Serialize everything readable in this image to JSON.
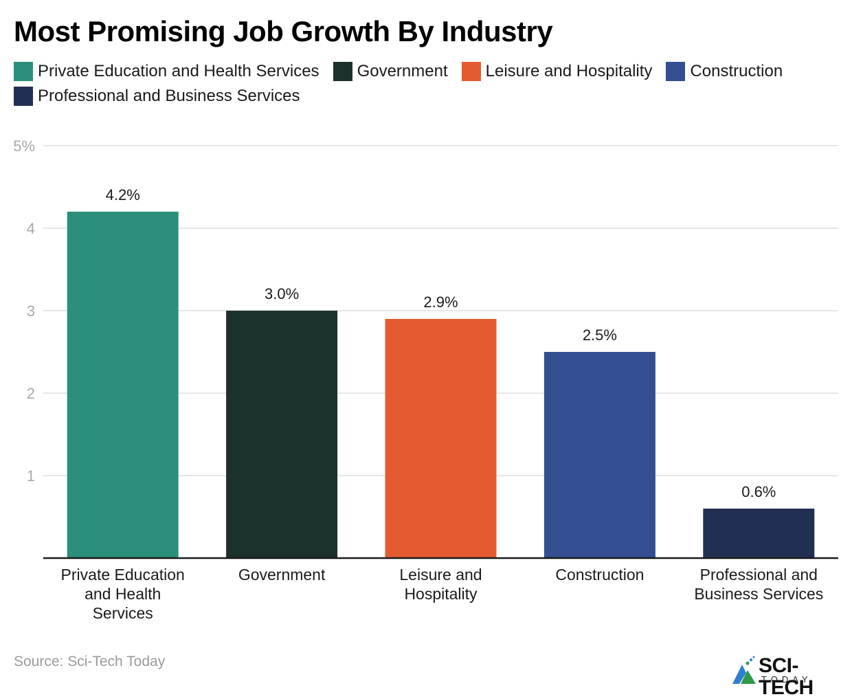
{
  "chart_data": {
    "type": "bar",
    "title": "Most Promising Job Growth By Industry",
    "categories": [
      "Private Education and Health Services",
      "Government",
      "Leisure and Hospitality",
      "Construction",
      "Professional and Business Services"
    ],
    "category_labels": [
      [
        "Private Education",
        "and Health",
        "Services"
      ],
      [
        "Government"
      ],
      [
        "Leisure and",
        "Hospitality"
      ],
      [
        "Construction"
      ],
      [
        "Professional and",
        "Business Services"
      ]
    ],
    "values": [
      4.2,
      3.0,
      2.9,
      2.5,
      0.6
    ],
    "data_labels": [
      "4.2%",
      "3.0%",
      "2.9%",
      "2.5%",
      "0.6%"
    ],
    "colors": [
      "#2b8f7b",
      "#1b312c",
      "#e55b31",
      "#334f91",
      "#212f52"
    ],
    "xlabel": "",
    "ylabel": "",
    "unit": "%",
    "ylim": [
      0,
      5
    ],
    "yticks": [
      1,
      2,
      3,
      4,
      5
    ],
    "ytick_labels": [
      "1",
      "2",
      "3",
      "4",
      "5%"
    ],
    "grid": true,
    "legend": {
      "position": "top-left",
      "entries": [
        {
          "label": "Private Education and Health Services",
          "color": "#2b8f7b"
        },
        {
          "label": "Government",
          "color": "#1b312c"
        },
        {
          "label": "Leisure and Hospitality",
          "color": "#e55b31"
        },
        {
          "label": "Construction",
          "color": "#334f91"
        },
        {
          "label": "Professional and Business Services",
          "color": "#212f52"
        }
      ]
    },
    "source": "Source: Sci-Tech Today"
  },
  "branding": {
    "logo_name": "SCI-TECH",
    "logo_sub": "TODAY"
  }
}
